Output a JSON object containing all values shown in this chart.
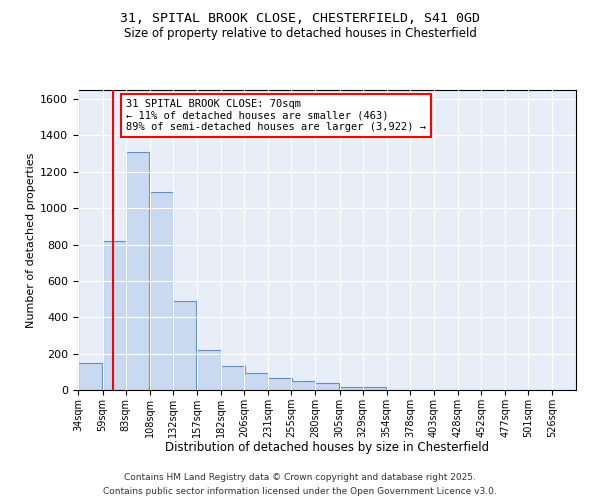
{
  "title_line1": "31, SPITAL BROOK CLOSE, CHESTERFIELD, S41 0GD",
  "title_line2": "Size of property relative to detached houses in Chesterfield",
  "xlabel": "Distribution of detached houses by size in Chesterfield",
  "ylabel": "Number of detached properties",
  "bar_color": "#c8d9f0",
  "bar_edge_color": "#6090c0",
  "background_color": "#e8eef8",
  "grid_color": "#ffffff",
  "red_line_x": 70,
  "annotation_text": "31 SPITAL BROOK CLOSE: 70sqm\n← 11% of detached houses are smaller (463)\n89% of semi-detached houses are larger (3,922) →",
  "bin_labels": [
    "34sqm",
    "59sqm",
    "83sqm",
    "108sqm",
    "132sqm",
    "157sqm",
    "182sqm",
    "206sqm",
    "231sqm",
    "255sqm",
    "280sqm",
    "305sqm",
    "329sqm",
    "354sqm",
    "378sqm",
    "403sqm",
    "428sqm",
    "452sqm",
    "477sqm",
    "501sqm",
    "526sqm"
  ],
  "bin_left_edges": [
    34,
    59,
    83,
    108,
    132,
    157,
    182,
    206,
    231,
    255,
    280,
    305,
    329,
    354,
    378,
    403,
    428,
    452,
    477,
    501,
    526
  ],
  "bin_width": 25,
  "bar_heights": [
    150,
    820,
    1310,
    1090,
    490,
    220,
    130,
    95,
    65,
    50,
    40,
    15,
    15,
    0,
    0,
    0,
    0,
    0,
    0,
    0,
    0
  ],
  "ylim": [
    0,
    1650
  ],
  "yticks": [
    0,
    200,
    400,
    600,
    800,
    1000,
    1200,
    1400,
    1600
  ],
  "footnote1": "Contains HM Land Registry data © Crown copyright and database right 2025.",
  "footnote2": "Contains public sector information licensed under the Open Government Licence v3.0."
}
